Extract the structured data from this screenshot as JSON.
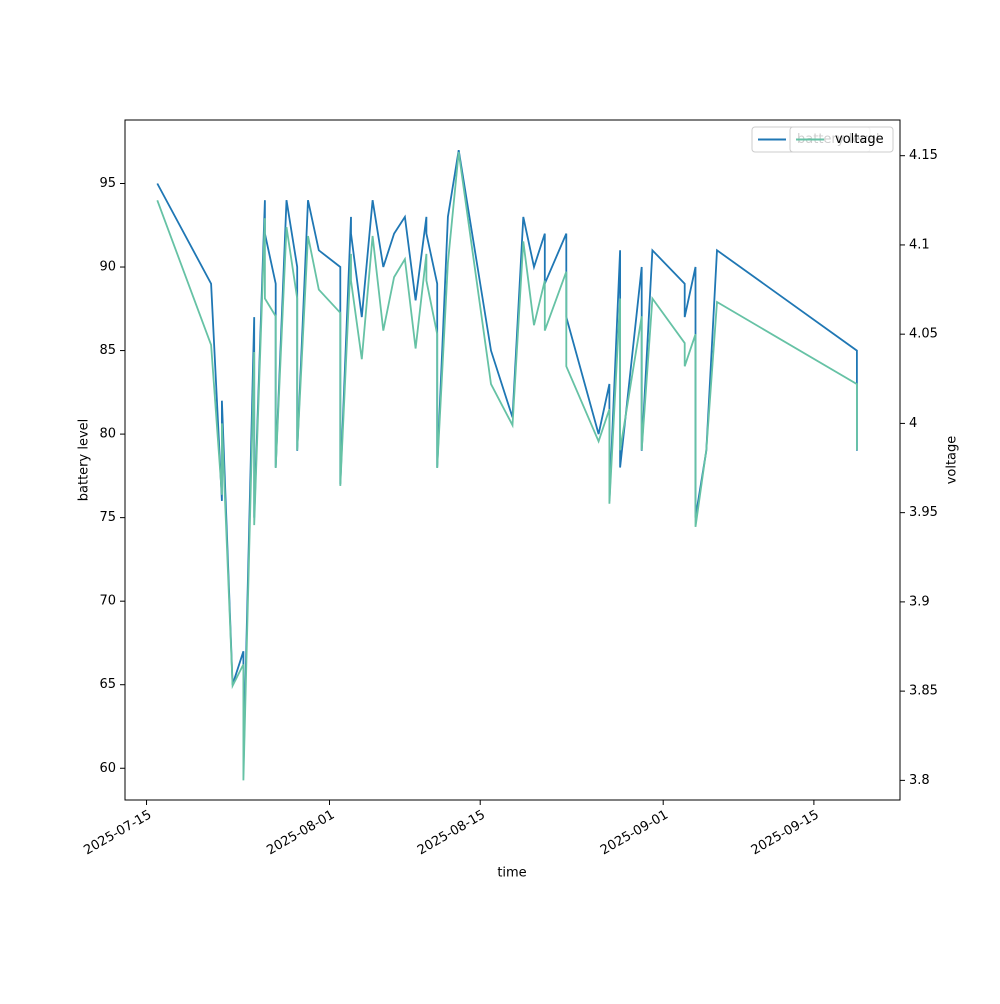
{
  "chart_data": {
    "type": "line",
    "x_label": "time",
    "y_label": "battery level",
    "y2_label": "voltage",
    "x": [
      "2025-07-16",
      "2025-07-21",
      "2025-07-22",
      "2025-07-22",
      "2025-07-23",
      "2025-07-24",
      "2025-07-24",
      "2025-07-25",
      "2025-07-25",
      "2025-07-26",
      "2025-07-26",
      "2025-07-27",
      "2025-07-27",
      "2025-07-28",
      "2025-07-29",
      "2025-07-29",
      "2025-07-30",
      "2025-07-31",
      "2025-08-02",
      "2025-08-02",
      "2025-08-03",
      "2025-08-03",
      "2025-08-04",
      "2025-08-05",
      "2025-08-06",
      "2025-08-07",
      "2025-08-08",
      "2025-08-09",
      "2025-08-10",
      "2025-08-10",
      "2025-08-11",
      "2025-08-11",
      "2025-08-12",
      "2025-08-13",
      "2025-08-16",
      "2025-08-18",
      "2025-08-19",
      "2025-08-20",
      "2025-08-21",
      "2025-08-21",
      "2025-08-23",
      "2025-08-23",
      "2025-08-26",
      "2025-08-27",
      "2025-08-27",
      "2025-08-28",
      "2025-08-28",
      "2025-08-30",
      "2025-08-30",
      "2025-08-31",
      "2025-09-03",
      "2025-09-03",
      "2025-09-04",
      "2025-09-04",
      "2025-09-05",
      "2025-09-06",
      "2025-09-19",
      "2025-09-19"
    ],
    "series": [
      {
        "name": "battery level",
        "color": "#1f77b4",
        "axis": "y",
        "values": [
          95,
          89,
          76,
          82,
          65,
          67,
          60,
          87,
          75,
          94,
          92,
          89,
          78,
          94,
          90,
          79,
          94,
          91,
          90,
          77,
          93,
          92,
          87,
          94,
          90,
          92,
          93,
          88,
          93,
          92,
          89,
          78,
          93,
          97,
          85,
          81,
          93,
          90,
          92,
          89,
          92,
          87,
          80,
          83,
          76,
          91,
          78,
          90,
          79,
          91,
          89,
          87,
          90,
          75,
          79,
          91,
          85,
          79
        ]
      },
      {
        "name": "voltage",
        "color": "#66c2a5",
        "axis": "y2",
        "values": [
          4.125,
          4.044,
          3.96,
          4.0,
          3.853,
          3.865,
          3.8,
          4.04,
          3.943,
          4.115,
          4.07,
          4.06,
          3.975,
          4.11,
          4.07,
          3.985,
          4.105,
          4.075,
          4.062,
          3.965,
          4.095,
          4.08,
          4.036,
          4.105,
          4.052,
          4.082,
          4.092,
          4.042,
          4.095,
          4.08,
          4.05,
          3.975,
          4.09,
          4.152,
          4.022,
          3.999,
          4.102,
          4.055,
          4.08,
          4.052,
          4.085,
          4.032,
          3.99,
          4.008,
          3.955,
          4.07,
          3.985,
          4.06,
          3.985,
          4.07,
          4.045,
          4.032,
          4.05,
          3.942,
          3.985,
          4.068,
          4.022,
          3.985
        ]
      }
    ],
    "xlim": [
      "2025-07-13",
      "2025-09-23"
    ],
    "xticks": [
      "2025-07-15",
      "2025-08-01",
      "2025-08-15",
      "2025-09-01",
      "2025-09-15"
    ],
    "ylim": [
      58.1,
      98.8
    ],
    "yticks": [
      60,
      65,
      70,
      75,
      80,
      85,
      90,
      95
    ],
    "y2lim": [
      3.789,
      4.17
    ],
    "y2ticks": [
      3.8,
      3.85,
      3.9,
      3.95,
      4.0,
      4.05,
      4.1,
      4.15
    ],
    "legend": "upper right"
  }
}
